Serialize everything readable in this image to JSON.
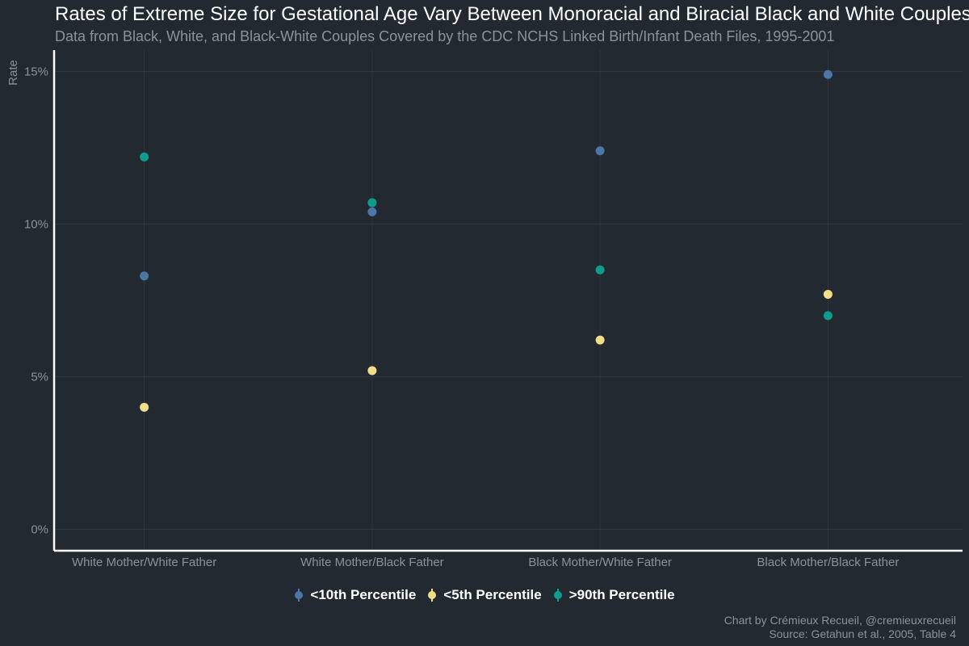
{
  "chart_data": {
    "type": "scatter",
    "title": "Rates of Extreme Size for Gestational Age Vary Between Monoracial and Biracial Black and White Couples",
    "subtitle": "Data from Black, White, and Black-White Couples Covered by the CDC NCHS Linked Birth/Infant Death Files, 1995-2001",
    "xlabel": "",
    "ylabel": "Rate",
    "ylim": [
      -0.7,
      15.7
    ],
    "yticks": [
      0,
      5,
      10,
      15
    ],
    "ytick_labels": [
      "0%",
      "5%",
      "10%",
      "15%"
    ],
    "grid": true,
    "legend_position": "bottom",
    "categories": [
      "White Mother/White Father",
      "White Mother/Black Father",
      "Black Mother/White Father",
      "Black Mother/Black Father"
    ],
    "series": [
      {
        "name": "<10th Percentile",
        "color": "#4a76a8",
        "values": [
          8.3,
          10.4,
          12.4,
          14.9
        ]
      },
      {
        "name": "<5th Percentile",
        "color": "#f2dd8a",
        "values": [
          4.0,
          5.2,
          6.2,
          7.7
        ]
      },
      {
        "name": ">90th Percentile",
        "color": "#0f9b8e",
        "values": [
          12.2,
          10.7,
          8.5,
          7.0
        ]
      }
    ]
  },
  "caption": {
    "line1": "Chart by Crémieux Recueil, @cremieuxrecueil",
    "line2": "Source: Getahun et al., 2005, Table 4"
  }
}
